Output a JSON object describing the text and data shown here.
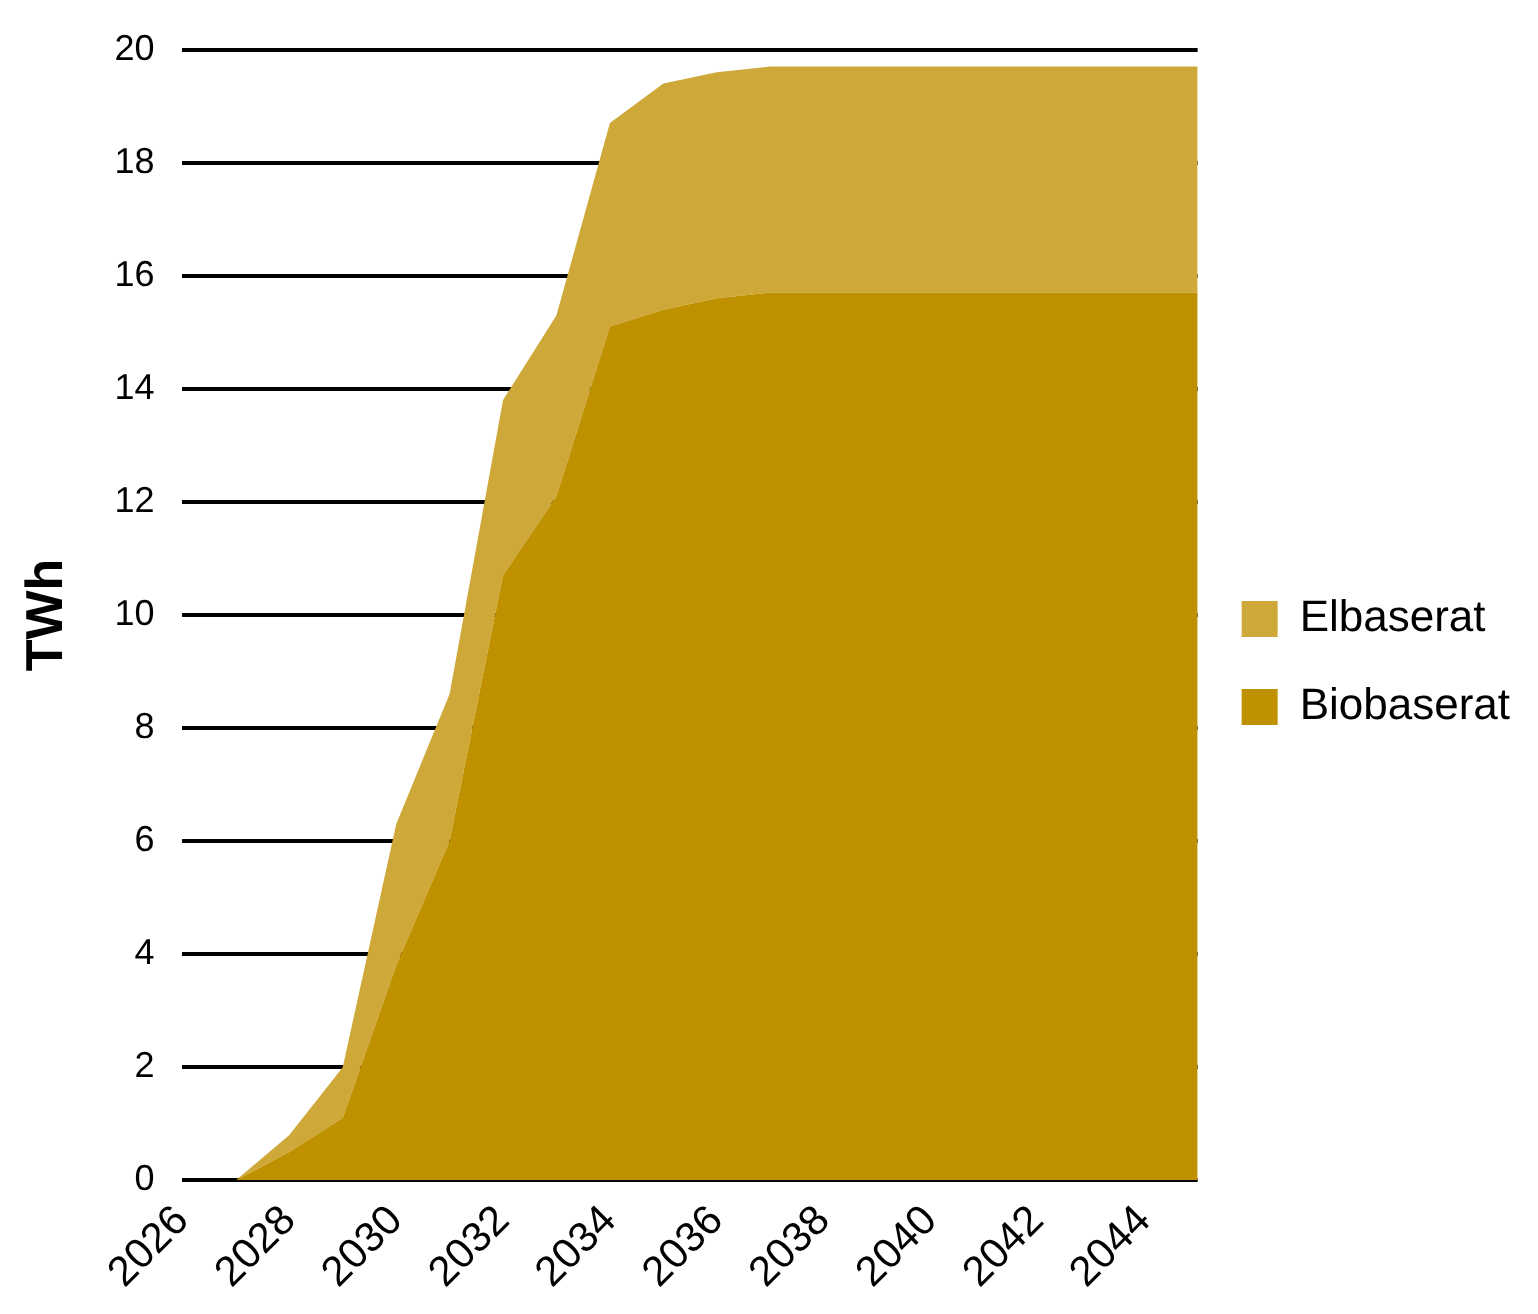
{
  "chart_data": {
    "type": "area",
    "stacked": true,
    "ylabel": "TWh",
    "categories": [
      "2026",
      null,
      "2028",
      null,
      "2030",
      null,
      "2032",
      null,
      "2034",
      null,
      "2036",
      null,
      "2038",
      null,
      "2040",
      null,
      "2042",
      null,
      "2044",
      null
    ],
    "series": [
      {
        "name": "Biobaserat",
        "color": "#bf9000",
        "values": [
          0,
          0,
          0.5,
          1.1,
          3.8,
          6.0,
          10.7,
          12.1,
          15.1,
          15.4,
          15.6,
          15.7,
          15.7,
          15.7,
          15.7,
          15.7,
          15.7,
          15.7,
          15.7,
          15.7
        ]
      },
      {
        "name": "Elbaserat",
        "color": "#cfa83a",
        "values": [
          0,
          0,
          0.3,
          0.9,
          2.5,
          2.6,
          3.1,
          3.2,
          3.6,
          4.0,
          4.0,
          4.0,
          4.0,
          4.0,
          4.0,
          4.0,
          4.0,
          4.0,
          4.0,
          4.0
        ]
      }
    ],
    "ylim": [
      0,
      20
    ],
    "yticks": [
      0,
      2,
      4,
      6,
      8,
      10,
      12,
      14,
      16,
      18,
      20
    ],
    "grid": "y",
    "legend": "right"
  }
}
